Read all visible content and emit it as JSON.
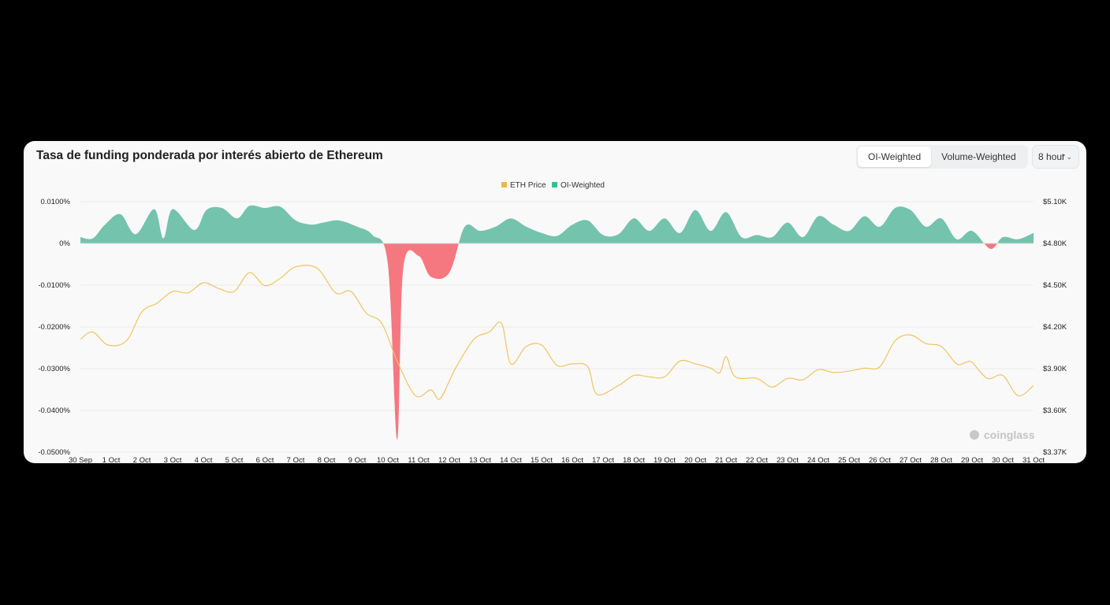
{
  "header": {
    "title": "Tasa de funding ponderada por interés abierto de Ethereum",
    "toggle": {
      "options": [
        "OI-Weighted",
        "Volume-Weighted"
      ],
      "selected": "OI-Weighted"
    },
    "interval": "8 hour"
  },
  "watermark": "coinglass",
  "colors": {
    "positive": "#5dba9f",
    "negative": "#f5616b",
    "price": "#f0c462",
    "grid": "#ececec"
  },
  "chart_data": {
    "type": "area+line",
    "legend": [
      "ETH Price",
      "OI-Weighted"
    ],
    "legend_colors": [
      "#e8b84b",
      "#2ec68f"
    ],
    "x_labels": [
      "30 Sep",
      "1 Oct",
      "2 Oct",
      "3 Oct",
      "4 Oct",
      "5 Oct",
      "6 Oct",
      "7 Oct",
      "8 Oct",
      "9 Oct",
      "10 Oct",
      "11 Oct",
      "12 Oct",
      "13 Oct",
      "14 Oct",
      "15 Oct",
      "16 Oct",
      "17 Oct",
      "18 Oct",
      "19 Oct",
      "20 Oct",
      "21 Oct",
      "22 Oct",
      "23 Oct",
      "24 Oct",
      "25 Oct",
      "26 Oct",
      "27 Oct",
      "28 Oct",
      "29 Oct",
      "30 Oct",
      "31 Oct"
    ],
    "y_left": {
      "ticks": [
        "0.0100%",
        "0%",
        "-0.0100%",
        "-0.0200%",
        "-0.0300%",
        "-0.0400%",
        "-0.0500%"
      ],
      "range": [
        -0.05,
        0.01
      ]
    },
    "y_right": {
      "ticks": [
        "$5.10K",
        "$4.80K",
        "$4.50K",
        "$4.20K",
        "$3.90K",
        "$3.60K",
        "$3.37K"
      ],
      "range": [
        3370,
        5100
      ]
    },
    "series": [
      {
        "name": "OI-Weighted",
        "unit": "%",
        "points": [
          [
            0,
            0.0015
          ],
          [
            0.4,
            0.0012
          ],
          [
            0.8,
            0.0045
          ],
          [
            1.3,
            0.007
          ],
          [
            1.8,
            0.0022
          ],
          [
            2.4,
            0.0082
          ],
          [
            2.7,
            0.0012
          ],
          [
            3.0,
            0.0082
          ],
          [
            3.7,
            0.0032
          ],
          [
            4.1,
            0.008
          ],
          [
            4.6,
            0.0085
          ],
          [
            5.1,
            0.006
          ],
          [
            5.5,
            0.009
          ],
          [
            6.0,
            0.0085
          ],
          [
            6.5,
            0.0088
          ],
          [
            7.0,
            0.0055
          ],
          [
            7.5,
            0.0045
          ],
          [
            7.9,
            0.005
          ],
          [
            8.4,
            0.0055
          ],
          [
            9.0,
            0.004
          ],
          [
            9.5,
            0.002
          ],
          [
            10.0,
            -0.005
          ],
          [
            10.3,
            -0.047
          ],
          [
            10.5,
            -0.006
          ],
          [
            11.0,
            -0.003
          ],
          [
            11.4,
            -0.008
          ],
          [
            12.0,
            -0.007
          ],
          [
            12.5,
            0.004
          ],
          [
            13.0,
            0.003
          ],
          [
            13.5,
            0.004
          ],
          [
            14.0,
            0.006
          ],
          [
            14.5,
            0.004
          ],
          [
            15.0,
            0.0025
          ],
          [
            15.5,
            0.0018
          ],
          [
            16.0,
            0.0045
          ],
          [
            16.5,
            0.0055
          ],
          [
            17.0,
            0.002
          ],
          [
            17.5,
            0.0022
          ],
          [
            18.0,
            0.006
          ],
          [
            18.5,
            0.003
          ],
          [
            19.0,
            0.006
          ],
          [
            19.5,
            0.0025
          ],
          [
            20.0,
            0.008
          ],
          [
            20.5,
            0.003
          ],
          [
            21.0,
            0.0075
          ],
          [
            21.5,
            0.0015
          ],
          [
            22.0,
            0.002
          ],
          [
            22.5,
            0.0015
          ],
          [
            23.0,
            0.005
          ],
          [
            23.5,
            0.0015
          ],
          [
            24.0,
            0.0065
          ],
          [
            24.5,
            0.0045
          ],
          [
            25.0,
            0.003
          ],
          [
            25.5,
            0.0065
          ],
          [
            26.0,
            0.004
          ],
          [
            26.5,
            0.0085
          ],
          [
            27.0,
            0.008
          ],
          [
            27.5,
            0.004
          ],
          [
            28.0,
            0.006
          ],
          [
            28.5,
            0.001
          ],
          [
            29.0,
            0.003
          ],
          [
            29.6,
            -0.0013
          ],
          [
            30.0,
            0.0015
          ],
          [
            30.5,
            0.001
          ],
          [
            31.0,
            0.0025
          ]
        ]
      },
      {
        "name": "ETH Price",
        "unit": "$",
        "points": [
          [
            0,
            4150
          ],
          [
            0.4,
            4200
          ],
          [
            0.9,
            4110
          ],
          [
            1.5,
            4140
          ],
          [
            2.0,
            4340
          ],
          [
            2.5,
            4400
          ],
          [
            3.0,
            4480
          ],
          [
            3.5,
            4470
          ],
          [
            4.0,
            4540
          ],
          [
            4.5,
            4500
          ],
          [
            5.0,
            4480
          ],
          [
            5.5,
            4610
          ],
          [
            6.0,
            4520
          ],
          [
            6.5,
            4570
          ],
          [
            7.0,
            4650
          ],
          [
            7.7,
            4640
          ],
          [
            8.3,
            4470
          ],
          [
            8.8,
            4480
          ],
          [
            9.3,
            4330
          ],
          [
            9.8,
            4260
          ],
          [
            10.3,
            4000
          ],
          [
            10.9,
            3760
          ],
          [
            11.4,
            3800
          ],
          [
            11.7,
            3740
          ],
          [
            12.2,
            3950
          ],
          [
            12.8,
            4150
          ],
          [
            13.3,
            4200
          ],
          [
            13.7,
            4260
          ],
          [
            14.0,
            3980
          ],
          [
            14.5,
            4100
          ],
          [
            15.0,
            4110
          ],
          [
            15.5,
            3970
          ],
          [
            16.0,
            3980
          ],
          [
            16.5,
            3960
          ],
          [
            16.8,
            3770
          ],
          [
            17.5,
            3830
          ],
          [
            18.0,
            3900
          ],
          [
            18.5,
            3890
          ],
          [
            19.0,
            3890
          ],
          [
            19.5,
            4000
          ],
          [
            20.0,
            3980
          ],
          [
            20.5,
            3950
          ],
          [
            20.8,
            3920
          ],
          [
            21.0,
            4030
          ],
          [
            21.3,
            3890
          ],
          [
            22.0,
            3880
          ],
          [
            22.5,
            3820
          ],
          [
            23.0,
            3880
          ],
          [
            23.5,
            3870
          ],
          [
            24.0,
            3940
          ],
          [
            24.5,
            3920
          ],
          [
            25.0,
            3930
          ],
          [
            25.5,
            3950
          ],
          [
            26.0,
            3960
          ],
          [
            26.5,
            4140
          ],
          [
            27.0,
            4180
          ],
          [
            27.5,
            4120
          ],
          [
            28.0,
            4100
          ],
          [
            28.5,
            3980
          ],
          [
            28.8,
            3990
          ],
          [
            29.0,
            3990
          ],
          [
            29.5,
            3880
          ],
          [
            30.0,
            3900
          ],
          [
            30.5,
            3760
          ],
          [
            31.0,
            3830
          ]
        ]
      }
    ]
  }
}
